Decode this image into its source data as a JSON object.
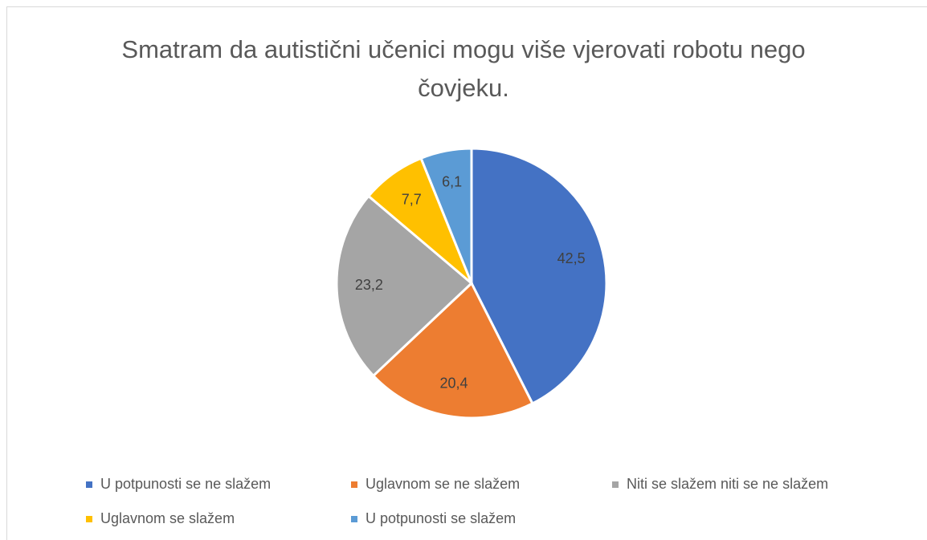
{
  "chart_data": {
    "type": "pie",
    "title": "Smatram da autistični učenici mogu više vjerovati robotu nego čovjeku.",
    "categories": [
      "U potpunosti se ne slažem",
      "Uglavnom se ne slažem",
      "Niti se slažem niti se ne slažem",
      "Uglavnom se slažem",
      "U potpunosti se slažem"
    ],
    "values": [
      42.5,
      20.4,
      23.2,
      7.7,
      6.1
    ],
    "value_labels": [
      "42,5",
      "20,4",
      "23,2",
      "7,7",
      "6,1"
    ],
    "colors": [
      "#4472c4",
      "#ed7d31",
      "#a5a5a5",
      "#ffc000",
      "#5b9bd5"
    ],
    "legend": "bottom"
  }
}
